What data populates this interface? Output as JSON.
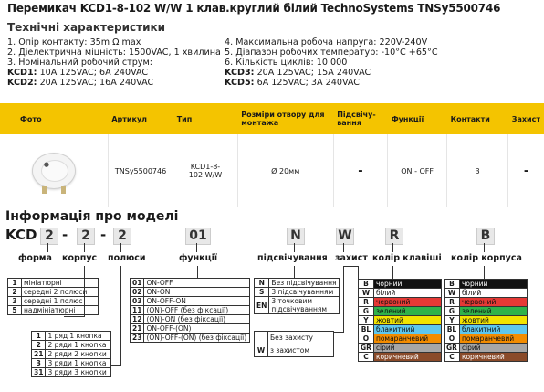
{
  "title": "Перемикач KCD1-8-102 W/W 1 клав.круглий білий TechnoSystems TNSy5500746",
  "specs": {
    "heading": "Технічні характеристики",
    "left": [
      "1. Опір контакту: 35m Ω  max",
      "2. Діелектрична міцність:  1500VAC, 1 хвилина",
      "3. Номінальний робочий струм:"
    ],
    "kcd1_label": "KCD1:",
    "kcd1_value": " 10A 125VAC; 6A 240VAC",
    "kcd2_label": "KCD2:",
    "kcd2_value": " 20A 125VAC; 16A 240VAC",
    "right": [
      "4. Максимальна робоча напруга: 220V-240V",
      "5. Діапазон робочих температур: -10°C +65°C",
      "6. Кількість циклів: 10 000"
    ],
    "kcd3_label": "KCD3:",
    "kcd3_value": " 20A 125VAC; 15A 240VAC",
    "kcd5_label": "KCD5:",
    "kcd5_value": " 6A 125VAC; 3A 240VAC"
  },
  "table": {
    "headers": [
      "Фото",
      "Артикул",
      "Тип",
      "Розміри отвору для монтажа",
      "Підсвічу-вання",
      "Функції",
      "Контакти",
      "Захист"
    ],
    "row": [
      "",
      "TNSy5500746",
      "KCD1-8-102 W/W",
      "Ø 20мм",
      "-",
      "ON - OFF",
      "3",
      "-"
    ]
  },
  "model": {
    "heading": "Інформація про моделі",
    "prefix": "KCD",
    "boxes": [
      "2",
      "2",
      "2",
      "01",
      "N",
      "W",
      "R",
      "B"
    ],
    "sep": "-",
    "labels": {
      "form": "форма",
      "body": "корпус",
      "poles": "полюси",
      "functions": "функції",
      "light": "підсвічування",
      "protection": "захист",
      "key_color": "колір клавіші",
      "body_color": "колір корпуса"
    },
    "form_table": [
      [
        "1",
        "мініатюрні"
      ],
      [
        "2",
        "середні 2 полюси"
      ],
      [
        "3",
        "середні 1 полюс"
      ],
      [
        "5",
        "надмініатюрні"
      ]
    ],
    "poles_table": [
      [
        "1",
        "1 ряд 1 кнопка"
      ],
      [
        "2",
        "2 ряди 1 кнопка"
      ],
      [
        "21",
        "2 ряди 2 кнопки"
      ],
      [
        "3",
        "3 ряди 1 кнопка"
      ],
      [
        "31",
        "3 ряди 3 кнопки"
      ]
    ],
    "func_table": [
      [
        "01",
        "ON-OFF"
      ],
      [
        "02",
        "ON-ON"
      ],
      [
        "03",
        "ON-OFF-ON"
      ],
      [
        "11",
        "(ON)-OFF (без фіксації)"
      ],
      [
        "12",
        "(ON)-ON (без фіксації)"
      ],
      [
        "21",
        "ON-OFF-(ON)"
      ],
      [
        "23",
        "(ON)-OFF-(ON) (без фіксації)"
      ]
    ],
    "light_table": [
      [
        "N",
        "Без підсвічування"
      ],
      [
        "S",
        "3 підсвічуванням"
      ],
      [
        "EN",
        "3 точковим підсвічуванням"
      ]
    ],
    "prot_table": [
      [
        "",
        "Без захисту"
      ],
      [
        "W",
        "з захистом"
      ]
    ],
    "colors": [
      {
        "k": "B",
        "name": "чорний",
        "color": "#111111",
        "text": "#ffffff"
      },
      {
        "k": "W",
        "name": "білий",
        "color": "#ffffff",
        "text": "#111111"
      },
      {
        "k": "R",
        "name": "червоний",
        "color": "#e53935",
        "text": "#111111"
      },
      {
        "k": "G",
        "name": "зелений",
        "color": "#2fb24a",
        "text": "#111111"
      },
      {
        "k": "Y",
        "name": "жовтий",
        "color": "#f2e300",
        "text": "#111111"
      },
      {
        "k": "BL",
        "name": "блакитний",
        "color": "#5ec7ee",
        "text": "#111111"
      },
      {
        "k": "O",
        "name": "помаранчевий",
        "color": "#f28c00",
        "text": "#111111"
      },
      {
        "k": "GR",
        "name": "сірий",
        "color": "#a6a6a6",
        "text": "#111111"
      },
      {
        "k": "C",
        "name": "коричневий",
        "color": "#8a4b2a",
        "text": "#ffffff"
      }
    ]
  }
}
